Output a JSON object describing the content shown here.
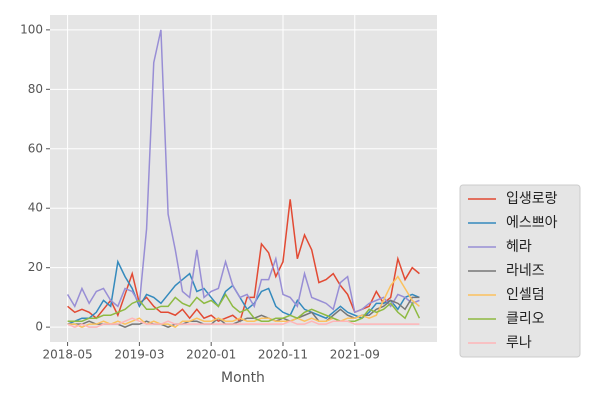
{
  "chart_data": {
    "type": "line",
    "xlabel": "Month",
    "x": [
      "2018-05",
      "2018-06",
      "2018-07",
      "2018-08",
      "2018-09",
      "2018-10",
      "2018-11",
      "2018-12",
      "2019-01",
      "2019-02",
      "2019-03",
      "2019-04",
      "2019-05",
      "2019-06",
      "2019-07",
      "2019-08",
      "2019-09",
      "2019-10",
      "2019-11",
      "2019-12",
      "2020-01",
      "2020-02",
      "2020-03",
      "2020-04",
      "2020-05",
      "2020-06",
      "2020-07",
      "2020-08",
      "2020-09",
      "2020-10",
      "2020-11",
      "2020-12",
      "2021-01",
      "2021-02",
      "2021-03",
      "2021-04",
      "2021-05",
      "2021-06",
      "2021-07",
      "2021-08",
      "2021-09",
      "2021-10",
      "2021-11",
      "2021-12",
      "2022-01",
      "2022-02",
      "2022-03",
      "2022-04",
      "2022-05",
      "2022-06"
    ],
    "xticks": [
      "2018-05",
      "2019-03",
      "2020-01",
      "2020-11",
      "2021-09"
    ],
    "ylim": [
      -5,
      105
    ],
    "yticks": [
      0,
      20,
      40,
      60,
      80,
      100
    ],
    "grid": true,
    "legend": "lower right",
    "series": [
      {
        "name": "입생로랑",
        "color": "#E24A33",
        "values": [
          7,
          5,
          6,
          5,
          3,
          6,
          9,
          4,
          11,
          18,
          8,
          10,
          7,
          5,
          5,
          4,
          6,
          3,
          6,
          3,
          4,
          2,
          3,
          4,
          2,
          10,
          10,
          28,
          25,
          17,
          22,
          43,
          23,
          31,
          26,
          15,
          16,
          18,
          14,
          11,
          5,
          6,
          7,
          12,
          8,
          10,
          23,
          16,
          20,
          18
        ]
      },
      {
        "name": "에스쁘아",
        "color": "#348ABD",
        "values": [
          1,
          2,
          3,
          3,
          5,
          9,
          7,
          22,
          17,
          13,
          7,
          11,
          10,
          8,
          11,
          14,
          16,
          18,
          12,
          13,
          10,
          7,
          12,
          14,
          10,
          6,
          8,
          12,
          13,
          7,
          5,
          4,
          9,
          6,
          5,
          4,
          3,
          5,
          7,
          5,
          4,
          3,
          5,
          8,
          8,
          9,
          6,
          10,
          11,
          10
        ]
      },
      {
        "name": "헤라",
        "color": "#988ED5",
        "values": [
          11,
          7,
          13,
          8,
          12,
          13,
          9,
          7,
          13,
          12,
          8,
          33,
          89,
          100,
          38,
          26,
          12,
          10,
          26,
          10,
          12,
          13,
          22,
          14,
          10,
          11,
          7,
          16,
          16,
          23,
          11,
          10,
          7,
          18,
          10,
          9,
          8,
          6,
          15,
          17,
          5,
          6,
          8,
          9,
          10,
          7,
          11,
          10,
          8,
          9
        ]
      },
      {
        "name": "라네즈",
        "color": "#777777",
        "values": [
          1,
          1,
          1,
          2,
          1,
          1,
          1,
          1,
          0,
          1,
          1,
          2,
          1,
          1,
          0,
          1,
          1,
          2,
          2,
          1,
          1,
          3,
          1,
          1,
          2,
          3,
          3,
          4,
          3,
          2,
          3,
          2,
          3,
          4,
          5,
          2,
          2,
          4,
          6,
          4,
          3,
          4,
          4,
          6,
          7,
          9,
          8,
          6,
          10,
          10
        ]
      },
      {
        "name": "인셀덤",
        "color": "#FBC15E",
        "values": [
          1,
          1,
          0,
          1,
          1,
          2,
          1,
          2,
          1,
          2,
          3,
          1,
          2,
          1,
          1,
          0,
          2,
          2,
          3,
          2,
          2,
          3,
          2,
          2,
          3,
          2,
          2,
          3,
          3,
          2,
          2,
          2,
          3,
          2,
          3,
          2,
          2,
          3,
          2,
          3,
          3,
          4,
          3,
          4,
          9,
          14,
          17,
          13,
          9,
          7
        ]
      },
      {
        "name": "클리오",
        "color": "#8EBA42",
        "values": [
          2,
          2,
          2,
          3,
          3,
          4,
          4,
          5,
          6,
          8,
          9,
          6,
          6,
          7,
          7,
          10,
          8,
          7,
          10,
          8,
          9,
          7,
          11,
          7,
          5,
          6,
          3,
          2,
          2,
          3,
          3,
          4,
          3,
          5,
          6,
          5,
          4,
          3,
          2,
          2,
          2,
          3,
          6,
          5,
          6,
          8,
          5,
          3,
          8,
          3
        ]
      },
      {
        "name": "루나",
        "color": "#FFB5B8",
        "values": [
          1,
          0,
          1,
          0,
          0,
          1,
          1,
          1,
          2,
          3,
          2,
          1,
          1,
          1,
          2,
          1,
          1,
          1,
          1,
          1,
          1,
          1,
          1,
          1,
          1,
          1,
          1,
          1,
          1,
          1,
          1,
          2,
          1,
          1,
          2,
          1,
          1,
          2,
          2,
          2,
          1,
          1,
          1,
          1,
          1,
          1,
          1,
          1,
          1,
          1
        ]
      }
    ]
  }
}
